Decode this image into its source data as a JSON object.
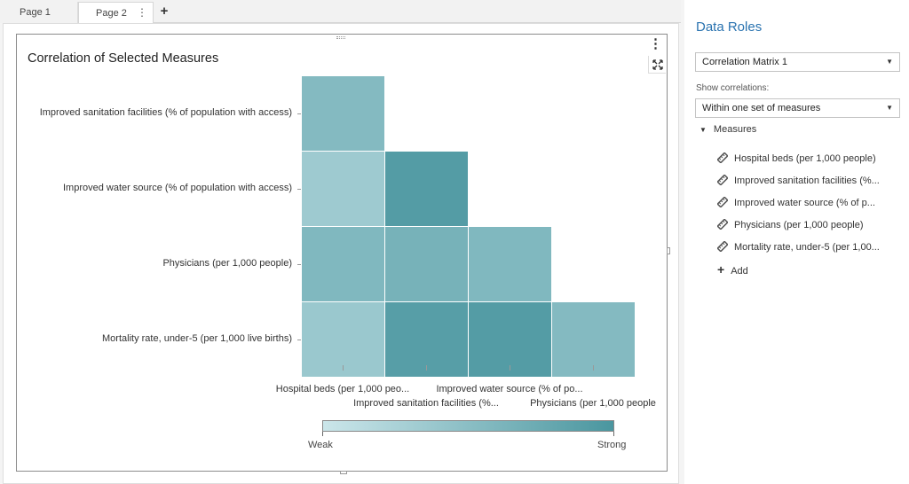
{
  "tabs": [
    {
      "label": "Page 1"
    },
    {
      "label": "Page 2"
    }
  ],
  "tab_more": "⋮",
  "add_tab": "+",
  "viz": {
    "title": "Correlation of Selected Measures",
    "menu": "⋮"
  },
  "chart_data": {
    "type": "heatmap",
    "title": "Correlation of Selected Measures",
    "rows": [
      "Improved sanitation facilities (% of population with access)",
      "Improved water source (% of population with access)",
      "Physicians (per 1,000 people)",
      "Mortality rate, under-5 (per 1,000 live births)"
    ],
    "columns": [
      "Hospital beds (per 1,000 peo...",
      "Improved sanitation facilities (%...",
      "Improved water source (% of po...",
      "Physicians (per 1,000 people"
    ],
    "strength": [
      [
        0.55,
        null,
        null,
        null
      ],
      [
        0.35,
        0.92,
        null,
        null
      ],
      [
        0.58,
        0.65,
        0.58,
        null
      ],
      [
        0.38,
        0.9,
        0.92,
        0.55
      ]
    ],
    "legend": {
      "low": "Weak",
      "high": "Strong",
      "colors": [
        "#cbe6ea",
        "#4a969f"
      ]
    }
  },
  "panel": {
    "title": "Data Roles",
    "role_select": "Correlation Matrix 1",
    "show_label": "Show correlations:",
    "show_select": "Within one set of measures",
    "section": "Measures",
    "measures": [
      "Hospital beds (per 1,000 people)",
      "Improved sanitation facilities (%...",
      "Improved water source (% of p...",
      "Physicians (per 1,000 people)",
      "Mortality rate, under-5 (per 1,00..."
    ],
    "add": "Add",
    "accent": "#2a73b0"
  }
}
